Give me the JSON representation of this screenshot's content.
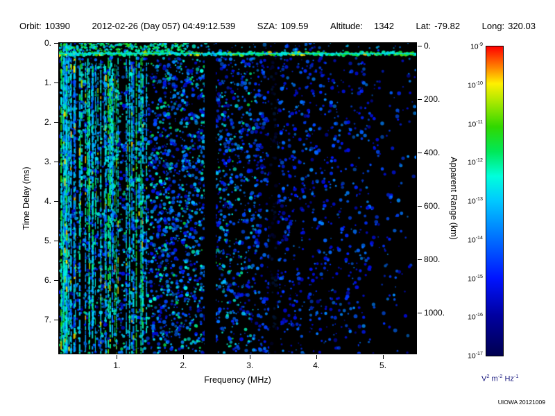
{
  "header": {
    "orbit_label": "Orbit:",
    "orbit_value": "10390",
    "datetime": "2012-02-26 (Day 057) 04:49:12.539",
    "sza_label": "SZA:",
    "sza_value": "109.59",
    "altitude_label": "Altitude:",
    "altitude_value": "1342",
    "lat_label": "Lat:",
    "lat_value": "-79.82",
    "long_label": "Long:",
    "long_value": "320.03"
  },
  "chart_data": {
    "type": "heatmap",
    "subtype": "radar-sounder-ionogram-spectrogram",
    "title": "",
    "xlabel": "Frequency (MHz)",
    "ylabel_left": "Time Delay (ms)",
    "ylabel_right": "Apparent Range (km)",
    "xlim": [
      0.13,
      5.5
    ],
    "ylim_ms": [
      0,
      7.86
    ],
    "right_axis_km_per_ms": 150,
    "grid": false,
    "background": "#000000",
    "x_ticks": [
      {
        "value": 1,
        "label": "1."
      },
      {
        "value": 2,
        "label": "2."
      },
      {
        "value": 3,
        "label": "3."
      },
      {
        "value": 4,
        "label": "4."
      },
      {
        "value": 5,
        "label": "5."
      }
    ],
    "y_ticks_left": [
      {
        "value": 0,
        "label": "0."
      },
      {
        "value": 1,
        "label": "1."
      },
      {
        "value": 2,
        "label": "2."
      },
      {
        "value": 3,
        "label": "3."
      },
      {
        "value": 4,
        "label": "4."
      },
      {
        "value": 5,
        "label": "5."
      },
      {
        "value": 6,
        "label": "6."
      },
      {
        "value": 7,
        "label": "7."
      }
    ],
    "y_ticks_right": [
      {
        "value": 0,
        "label": "0."
      },
      {
        "value": 200,
        "label": "200."
      },
      {
        "value": 400,
        "label": "400."
      },
      {
        "value": 600,
        "label": "600."
      },
      {
        "value": 800,
        "label": "800."
      },
      {
        "value": 1000,
        "label": "1000."
      }
    ],
    "colorbar": {
      "position": "right",
      "tick_base": "10",
      "tick_exponents": [
        "-9",
        "-10",
        "-11",
        "-12",
        "-13",
        "-14",
        "-15",
        "-16",
        "-17"
      ],
      "value_range": [
        "1e-17",
        "1e-9"
      ],
      "unit_parts": [
        {
          "base": "V",
          "exp": "2"
        },
        {
          "base": "m",
          "exp": "-2"
        },
        {
          "base": "Hz",
          "exp": "-1"
        }
      ],
      "colormap_stops": [
        [
          0.0,
          "#000050"
        ],
        [
          0.13,
          "#0000A0"
        ],
        [
          0.25,
          "#0014FF"
        ],
        [
          0.38,
          "#0070FF"
        ],
        [
          0.5,
          "#00C8FF"
        ],
        [
          0.58,
          "#00FFDC"
        ],
        [
          0.66,
          "#00E858"
        ],
        [
          0.74,
          "#30D800"
        ],
        [
          0.82,
          "#A8E800"
        ],
        [
          0.88,
          "#FFF000"
        ],
        [
          0.93,
          "#FF8800"
        ],
        [
          1.0,
          "#FF0000"
        ]
      ]
    },
    "features": {
      "surface_reflection_band": {
        "time_delay_ms": [
          0.21,
          0.33
        ],
        "freq_range_mhz": [
          0.13,
          5.5
        ],
        "intensity": "high, green-cyan with scattered yellow dots"
      },
      "low_freq_vertical_striations": {
        "freq_range_mhz": [
          0.13,
          1.45
        ],
        "time_delay_range_ms": [
          0,
          7.86
        ],
        "intensity": "medium-high, bright green-cyan vertical lines, densest below 1 MHz"
      },
      "diffuse_scatter": {
        "freq_range_mhz": [
          1.45,
          5.5
        ],
        "intensity": "low, blue speckle; density decreases with frequency and delay"
      },
      "quiet_bands_mhz": [
        [
          2.3,
          2.5
        ],
        [
          3.3,
          3.45
        ]
      ]
    }
  },
  "credit": "UIOWA 20121009"
}
